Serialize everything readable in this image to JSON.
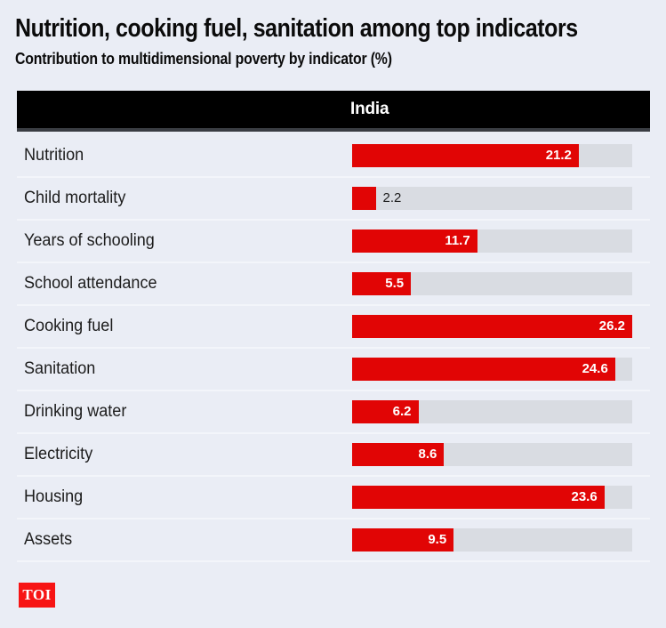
{
  "header": {
    "title": "Nutrition, cooking fuel, sanitation among top indicators",
    "subtitle": "Contribution to multidimensional poverty by indicator (%)"
  },
  "table": {
    "column_header": "India"
  },
  "chart_data": {
    "type": "bar",
    "orientation": "horizontal",
    "title": "Nutrition, cooking fuel, sanitation among top indicators",
    "subtitle": "Contribution to multidimensional poverty by indicator (%)",
    "series_header": "India",
    "categories": [
      "Nutrition",
      "Child mortality",
      "Years of schooling",
      "School attendance",
      "Cooking fuel",
      "Sanitation",
      "Drinking water",
      "Electricity",
      "Housing",
      "Assets"
    ],
    "values": [
      21.2,
      2.2,
      11.7,
      5.5,
      26.2,
      24.6,
      6.2,
      8.6,
      23.6,
      9.5
    ],
    "xlim": [
      0,
      26.2
    ],
    "grid": false,
    "legend": false,
    "value_labels_shown": true,
    "bar_color": "#e10505",
    "track_color": "#d9dce2",
    "value_inside_color": "#ffffff",
    "value_outside_color": "#1c1c1c"
  },
  "footer": {
    "logo_text": "TOI"
  },
  "colors": {
    "background": "#eaedf5",
    "header_bg": "#000000",
    "header_border": "#3a3d43",
    "divider": "#f3f5fa",
    "logo_bg": "#f71414",
    "text": "#111111"
  }
}
